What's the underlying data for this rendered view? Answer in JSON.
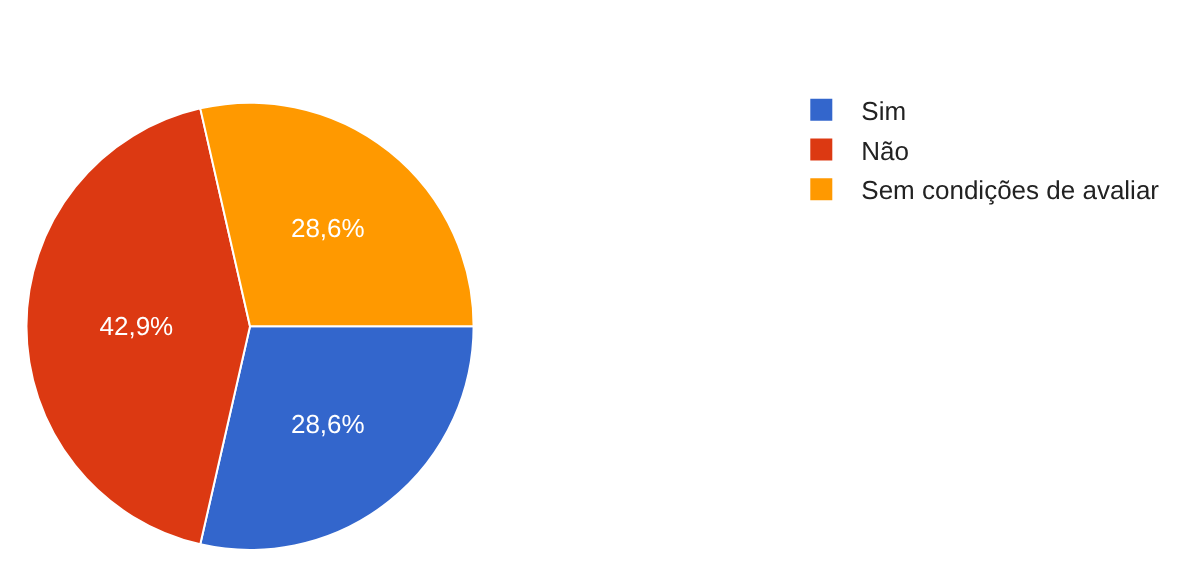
{
  "chart_data": {
    "type": "pie",
    "categories": [
      "Sim",
      "Não",
      "Sem condições de avaliar"
    ],
    "values": [
      28.6,
      42.9,
      28.6
    ],
    "colors": [
      "#3366cc",
      "#dc3912",
      "#ff9900"
    ],
    "value_labels": [
      "28,6%",
      "42,9%",
      "28,6%"
    ],
    "legend": "top right"
  }
}
